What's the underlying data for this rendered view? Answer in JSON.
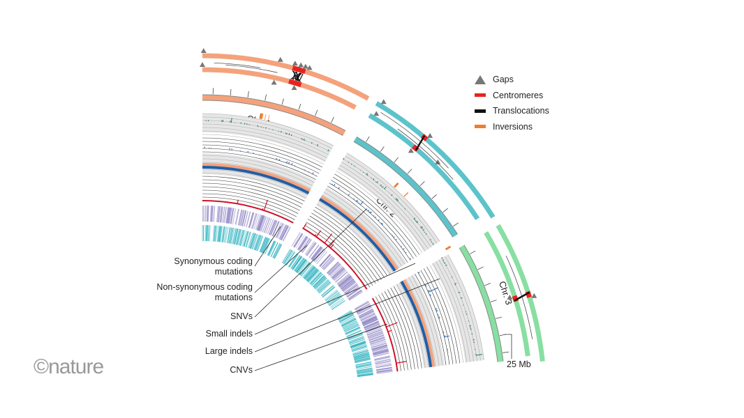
{
  "chromosomes": [
    {
      "label": "Chr. 1",
      "color": "#f4a27c"
    },
    {
      "label": "Chr. 2",
      "color": "#5cc3cb"
    },
    {
      "label": "Chr. 3",
      "color": "#88dfa2"
    }
  ],
  "legend": [
    {
      "label": "Gaps",
      "icon": "triangle",
      "color": "#777777"
    },
    {
      "label": "Centromeres",
      "icon": "bar",
      "color": "#e8231f"
    },
    {
      "label": "Translocations",
      "icon": "bar",
      "color": "#111111"
    },
    {
      "label": "Inversions",
      "icon": "bar",
      "color": "#ef7d2e"
    }
  ],
  "track_labels": {
    "synonymous": "Synonymous coding mutations",
    "nonsynonymous": "Non-synonymous coding mutations",
    "snvs": "SNVs",
    "small_indels": "Small indels",
    "large_indels": "Large indels",
    "cnvs": "CNVs"
  },
  "scale_bar": "25 Mb",
  "logo": "©nature",
  "colors": {
    "synonymous": "#8f86c4",
    "nonsynonymous": "#2fb3bf",
    "cnv": "#d0102a",
    "snv_blue": "#1f5fa8",
    "snv_salmon": "#f4a27c",
    "green": "#1f7a5c",
    "track_grey": "#e6e6e6"
  }
}
